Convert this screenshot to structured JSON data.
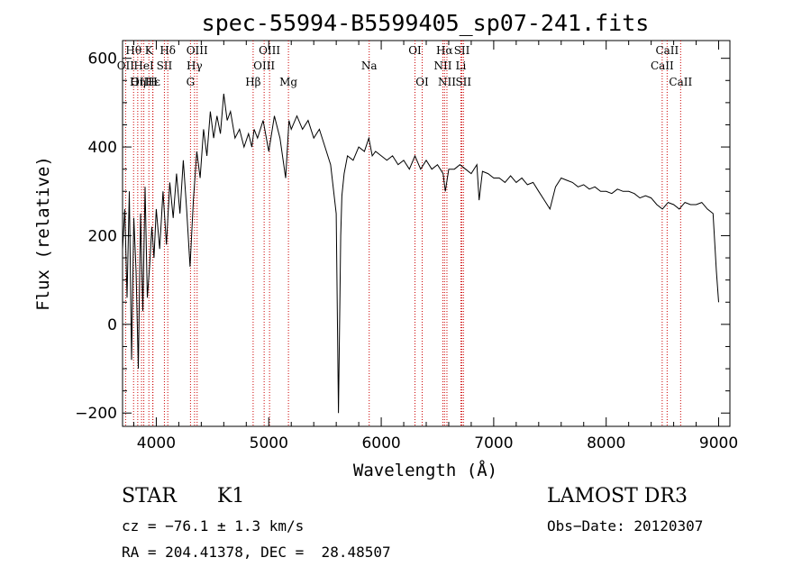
{
  "chart_data": {
    "type": "line",
    "title": "spec-55994-B5599405_sp07-241.fits",
    "xlabel": "Wavelength (Å)",
    "ylabel": "Flux (relative)",
    "xlim": [
      3700,
      9100
    ],
    "ylim": [
      -230,
      640
    ],
    "xticks": [
      "4000",
      "5000",
      "6000",
      "7000",
      "8000",
      "9000"
    ],
    "yticks": [
      "−200",
      "0",
      "200",
      "400",
      "600"
    ],
    "xtick_values": [
      4000,
      5000,
      6000,
      7000,
      8000,
      9000
    ],
    "ytick_values": [
      -200,
      0,
      200,
      400,
      600
    ],
    "line_color": "#000000",
    "marker_color": "#cc0000",
    "spectrum": {
      "x": [
        3700,
        3720,
        3740,
        3760,
        3780,
        3800,
        3820,
        3840,
        3860,
        3880,
        3900,
        3920,
        3940,
        3960,
        3980,
        4000,
        4030,
        4060,
        4090,
        4120,
        4150,
        4180,
        4210,
        4240,
        4270,
        4300,
        4330,
        4360,
        4390,
        4420,
        4450,
        4480,
        4510,
        4540,
        4570,
        4600,
        4630,
        4660,
        4700,
        4740,
        4780,
        4820,
        4850,
        4870,
        4900,
        4950,
        5000,
        5050,
        5100,
        5150,
        5180,
        5200,
        5250,
        5300,
        5350,
        5400,
        5450,
        5500,
        5550,
        5600,
        5620,
        5640,
        5650,
        5670,
        5700,
        5750,
        5800,
        5850,
        5890,
        5920,
        5950,
        6000,
        6050,
        6100,
        6150,
        6200,
        6250,
        6300,
        6350,
        6400,
        6450,
        6500,
        6550,
        6570,
        6600,
        6650,
        6700,
        6750,
        6800,
        6850,
        6870,
        6900,
        6950,
        7000,
        7050,
        7100,
        7150,
        7200,
        7250,
        7300,
        7350,
        7400,
        7450,
        7500,
        7550,
        7600,
        7650,
        7700,
        7750,
        7800,
        7850,
        7900,
        7950,
        8000,
        8050,
        8100,
        8150,
        8200,
        8250,
        8300,
        8350,
        8400,
        8450,
        8500,
        8550,
        8600,
        8650,
        8700,
        8750,
        8800,
        8850,
        8900,
        8950,
        8980,
        9000
      ],
      "y": [
        170,
        260,
        60,
        300,
        -80,
        240,
        120,
        -100,
        250,
        30,
        310,
        60,
        130,
        220,
        150,
        260,
        170,
        300,
        180,
        320,
        240,
        340,
        250,
        370,
        260,
        130,
        280,
        390,
        330,
        440,
        380,
        480,
        420,
        470,
        430,
        520,
        460,
        480,
        420,
        440,
        400,
        430,
        400,
        440,
        420,
        460,
        390,
        470,
        420,
        330,
        460,
        440,
        470,
        440,
        460,
        420,
        440,
        400,
        360,
        250,
        -200,
        200,
        290,
        340,
        380,
        370,
        400,
        390,
        420,
        380,
        390,
        380,
        370,
        380,
        360,
        370,
        350,
        380,
        350,
        370,
        350,
        360,
        340,
        300,
        350,
        350,
        360,
        350,
        340,
        360,
        280,
        345,
        340,
        330,
        330,
        320,
        335,
        320,
        330,
        315,
        320,
        300,
        280,
        260,
        310,
        330,
        325,
        320,
        310,
        315,
        305,
        310,
        300,
        300,
        295,
        305,
        300,
        300,
        295,
        285,
        290,
        285,
        270,
        260,
        275,
        270,
        260,
        275,
        270,
        270,
        275,
        260,
        250,
        120,
        50
      ]
    },
    "lines": [
      {
        "label": "Hθ",
        "wl": 3798,
        "row": 0
      },
      {
        "label": "OII",
        "wl": 3727,
        "row": 1
      },
      {
        "label": "OIII",
        "wl": 3869,
        "row": 2
      },
      {
        "label": "Hε",
        "wl": 3970,
        "row": 2
      },
      {
        "label": "Hη",
        "wl": 3835,
        "row": 2
      },
      {
        "label": "K",
        "wl": 3934,
        "row": 0
      },
      {
        "label": "HeI",
        "wl": 3889,
        "row": 1
      },
      {
        "label": "SII",
        "wl": 4072,
        "row": 1
      },
      {
        "label": "H",
        "wl": 3968,
        "row": 2
      },
      {
        "label": "Hδ",
        "wl": 4102,
        "row": 0
      },
      {
        "label": "OIII",
        "wl": 4363,
        "row": 0
      },
      {
        "label": "Hγ",
        "wl": 4340,
        "row": 1
      },
      {
        "label": "G",
        "wl": 4304,
        "row": 2
      },
      {
        "label": "Hβ",
        "wl": 4861,
        "row": 2
      },
      {
        "label": "OIII",
        "wl": 5007,
        "row": 0
      },
      {
        "label": "OIII",
        "wl": 4959,
        "row": 1
      },
      {
        "label": "Mg",
        "wl": 5175,
        "row": 2
      },
      {
        "label": "Na",
        "wl": 5893,
        "row": 1
      },
      {
        "label": "OI",
        "wl": 6300,
        "row": 0
      },
      {
        "label": "OI",
        "wl": 6364,
        "row": 2
      },
      {
        "label": "Hα",
        "wl": 6563,
        "row": 0
      },
      {
        "label": "NII",
        "wl": 6548,
        "row": 1
      },
      {
        "label": "NII",
        "wl": 6584,
        "row": 2
      },
      {
        "label": "SII",
        "wl": 6717,
        "row": 0
      },
      {
        "label": "Li",
        "wl": 6708,
        "row": 1
      },
      {
        "label": "SII",
        "wl": 6731,
        "row": 2
      },
      {
        "label": "CaII",
        "wl": 8542,
        "row": 0
      },
      {
        "label": "CaII",
        "wl": 8498,
        "row": 1
      },
      {
        "label": "CaII",
        "wl": 8662,
        "row": 2
      }
    ]
  },
  "info": {
    "class": "STAR",
    "subclass": "K1",
    "survey": "LAMOST DR3",
    "cz": "cz = −76.1 ± 1.3 km/s",
    "obs_date": "Obs−Date: 20120307",
    "radec": "RA = 204.41378, DEC =  28.48507"
  }
}
